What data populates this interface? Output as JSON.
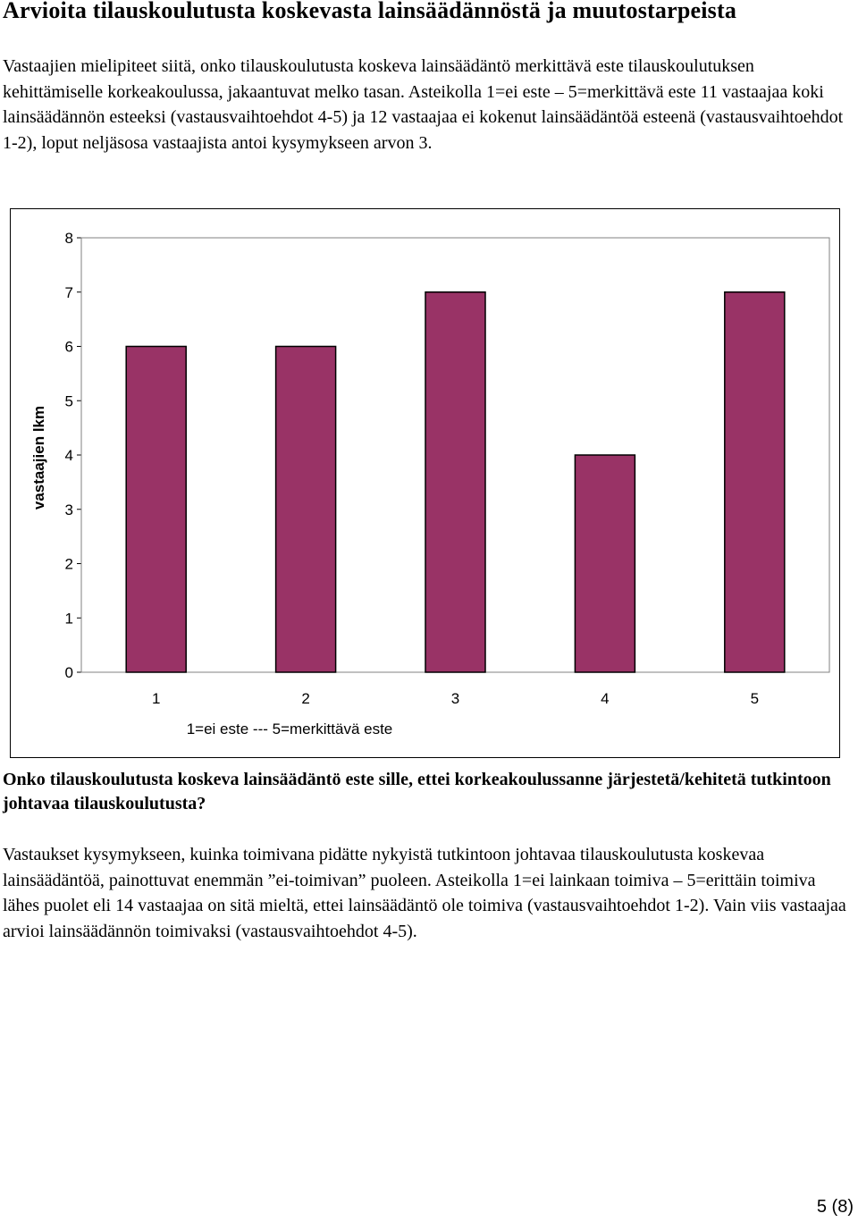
{
  "document": {
    "title": "Arvioita tilauskoulutusta koskevasta lainsäädännöstä ja muutostarpeista",
    "intro": "Vastaajien mielipiteet siitä, onko tilauskoulutusta koskeva lainsäädäntö merkittävä este tilauskoulutuksen kehittämiselle korkeakoulussa, jakaantuvat melko tasan. Asteikolla 1=ei este – 5=merkittävä este 11 vastaajaa koki lainsäädännön esteeksi (vastausvaihtoehdot 4-5) ja 12 vastaajaa ei kokenut lainsäädäntöä esteenä (vastausvaihtoehdot 1-2), loput neljäsosa vastaajista antoi kysymykseen arvon 3.",
    "question": "Onko tilauskoulutusta koskeva lainsäädäntö este sille, ettei korkeakoulussanne järjestetä/kehitetä tutkintoon johtavaa tilauskoulutusta?",
    "answer": "Vastaukset kysymykseen, kuinka toimivana pidätte nykyistä tutkintoon johtavaa tilauskoulutusta koskevaa lainsäädäntöä, painottuvat enemmän ”ei-toimivan” puoleen. Asteikolla 1=ei lainkaan toimiva – 5=erittäin toimiva lähes puolet eli 14 vastaajaa on sitä mieltä, ettei lainsäädäntö ole toimiva (vastausvaihtoehdot 1-2). Vain viis vastaajaa arvioi lainsäädännön toimivaksi (vastausvaihtoehdot 4-5).",
    "page_number": "5 (8)"
  },
  "chart_data": {
    "type": "bar",
    "categories": [
      "1",
      "2",
      "3",
      "4",
      "5"
    ],
    "values": [
      6,
      6,
      7,
      4,
      7
    ],
    "title": "",
    "xlabel": "1=ei este --- 5=merkittävä este",
    "ylabel": "vastaajien lkm",
    "ylim": [
      0,
      8
    ],
    "yticks": [
      "0",
      "1",
      "2",
      "3",
      "4",
      "5",
      "6",
      "7",
      "8"
    ],
    "grid": false,
    "legend": "none",
    "bar_color": "#993366"
  }
}
